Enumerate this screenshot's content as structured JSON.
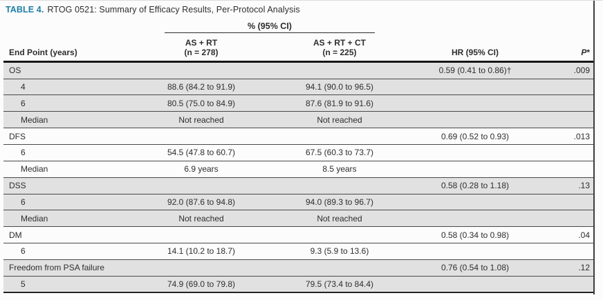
{
  "title": {
    "label": "TABLE 4.",
    "text": "RTOG 0521: Summary of Efficacy Results, Per-Protocol Analysis"
  },
  "colors": {
    "accent_teal": "#1e7ea6",
    "row_shade": "#e1e1e1"
  },
  "table": {
    "span_header": "% (95% CI)",
    "headers": {
      "endpoint": "End Point (years)",
      "arm1_line1": "AS + RT",
      "arm1_line2": "(n = 278)",
      "arm2_line1": "AS + RT + CT",
      "arm2_line2": "(n = 225)",
      "hr": "HR (95% CI)",
      "p_letter": "P",
      "p_star": "*"
    },
    "rows": [
      {
        "label": "OS",
        "indent": false,
        "arm1": "",
        "arm2": "",
        "hr": "0.59 (0.41 to 0.86)†",
        "p": ".009",
        "shade": true
      },
      {
        "label": "4",
        "indent": true,
        "arm1": "88.6 (84.2 to 91.9)",
        "arm2": "94.1 (90.0 to 96.5)",
        "hr": "",
        "p": "",
        "shade": true
      },
      {
        "label": "6",
        "indent": true,
        "arm1": "80.5 (75.0 to 84.9)",
        "arm2": "87.6 (81.9 to 91.6)",
        "hr": "",
        "p": "",
        "shade": true
      },
      {
        "label": "Median",
        "indent": true,
        "arm1": "Not reached",
        "arm2": "Not reached",
        "hr": "",
        "p": "",
        "shade": true
      },
      {
        "label": "DFS",
        "indent": false,
        "arm1": "",
        "arm2": "",
        "hr": "0.69 (0.52 to 0.93)",
        "p": ".013",
        "shade": false
      },
      {
        "label": "6",
        "indent": true,
        "arm1": "54.5 (47.8 to 60.7)",
        "arm2": "67.5 (60.3 to 73.7)",
        "hr": "",
        "p": "",
        "shade": false
      },
      {
        "label": "Median",
        "indent": true,
        "arm1": "6.9 years",
        "arm2": "8.5 years",
        "hr": "",
        "p": "",
        "shade": false
      },
      {
        "label": "DSS",
        "indent": false,
        "arm1": "",
        "arm2": "",
        "hr": "0.58 (0.28 to 1.18)",
        "p": ".13",
        "shade": true
      },
      {
        "label": "6",
        "indent": true,
        "arm1": "92.0 (87.6 to 94.8)",
        "arm2": "94.0 (89.3 to 96.7)",
        "hr": "",
        "p": "",
        "shade": true
      },
      {
        "label": "Median",
        "indent": true,
        "arm1": "Not reached",
        "arm2": "Not reached",
        "hr": "",
        "p": "",
        "shade": true
      },
      {
        "label": "DM",
        "indent": false,
        "arm1": "",
        "arm2": "",
        "hr": "0.58 (0.34 to 0.98)",
        "p": ".04",
        "shade": false
      },
      {
        "label": "6",
        "indent": true,
        "arm1": "14.1 (10.2 to 18.7)",
        "arm2": "9.3 (5.9 to 13.6)",
        "hr": "",
        "p": "",
        "shade": false
      },
      {
        "label": "Freedom from PSA failure",
        "indent": false,
        "arm1": "",
        "arm2": "",
        "hr": "0.76 (0.54 to 1.08)",
        "p": ".12",
        "shade": true
      },
      {
        "label": "5",
        "indent": true,
        "arm1": "74.9 (69.0 to 79.8)",
        "arm2": "79.5 (73.4 to 84.4)",
        "hr": "",
        "p": "",
        "shade": true
      }
    ]
  }
}
